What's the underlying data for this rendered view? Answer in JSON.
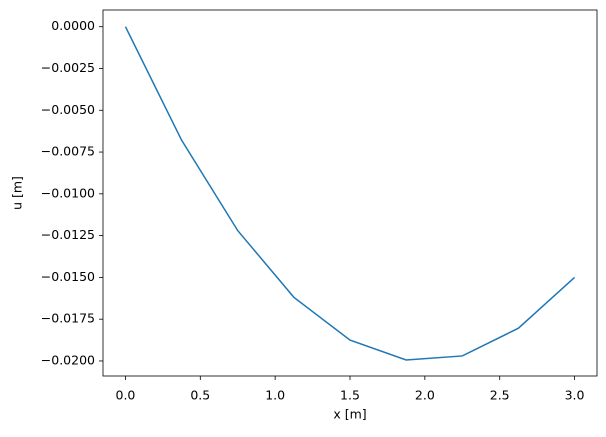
{
  "chart_data": {
    "type": "line",
    "x_label": "x [m]",
    "y_label": "u [m]",
    "x": [
      0,
      0.375,
      0.75,
      1.125,
      1.5,
      1.875,
      2.25,
      2.625,
      3.0
    ],
    "series": [
      {
        "color": "#1f77b4",
        "values": [
          0,
          -0.00679,
          -0.0122,
          -0.01619,
          -0.01875,
          -0.01994,
          -0.0197,
          -0.01804,
          -0.015
        ]
      }
    ],
    "xlim": [
      -0.15,
      3.15
    ],
    "ylim": [
      -0.0209,
      0.001
    ],
    "xticks": [
      {
        "value": 0,
        "label": "0.0"
      },
      0.5,
      {
        "value": 1,
        "label": "1.0"
      },
      1.5,
      {
        "value": 2,
        "label": "2.0"
      },
      2.5,
      {
        "value": 3,
        "label": "3.0"
      }
    ],
    "yticks": [
      {
        "value": 0,
        "label": "0.0000"
      },
      {
        "value": -0.0025,
        "label": "−0.0025"
      },
      {
        "value": -0.005,
        "label": "−0.0050"
      },
      {
        "value": -0.0075,
        "label": "−0.0075"
      },
      {
        "value": -0.01,
        "label": "−0.0100"
      },
      {
        "value": -0.0125,
        "label": "−0.0125"
      },
      {
        "value": -0.015,
        "label": "−0.0150"
      },
      {
        "value": -0.0175,
        "label": "−0.0175"
      },
      {
        "value": -0.02,
        "label": "−0.0200"
      }
    ],
    "grid": false
  }
}
